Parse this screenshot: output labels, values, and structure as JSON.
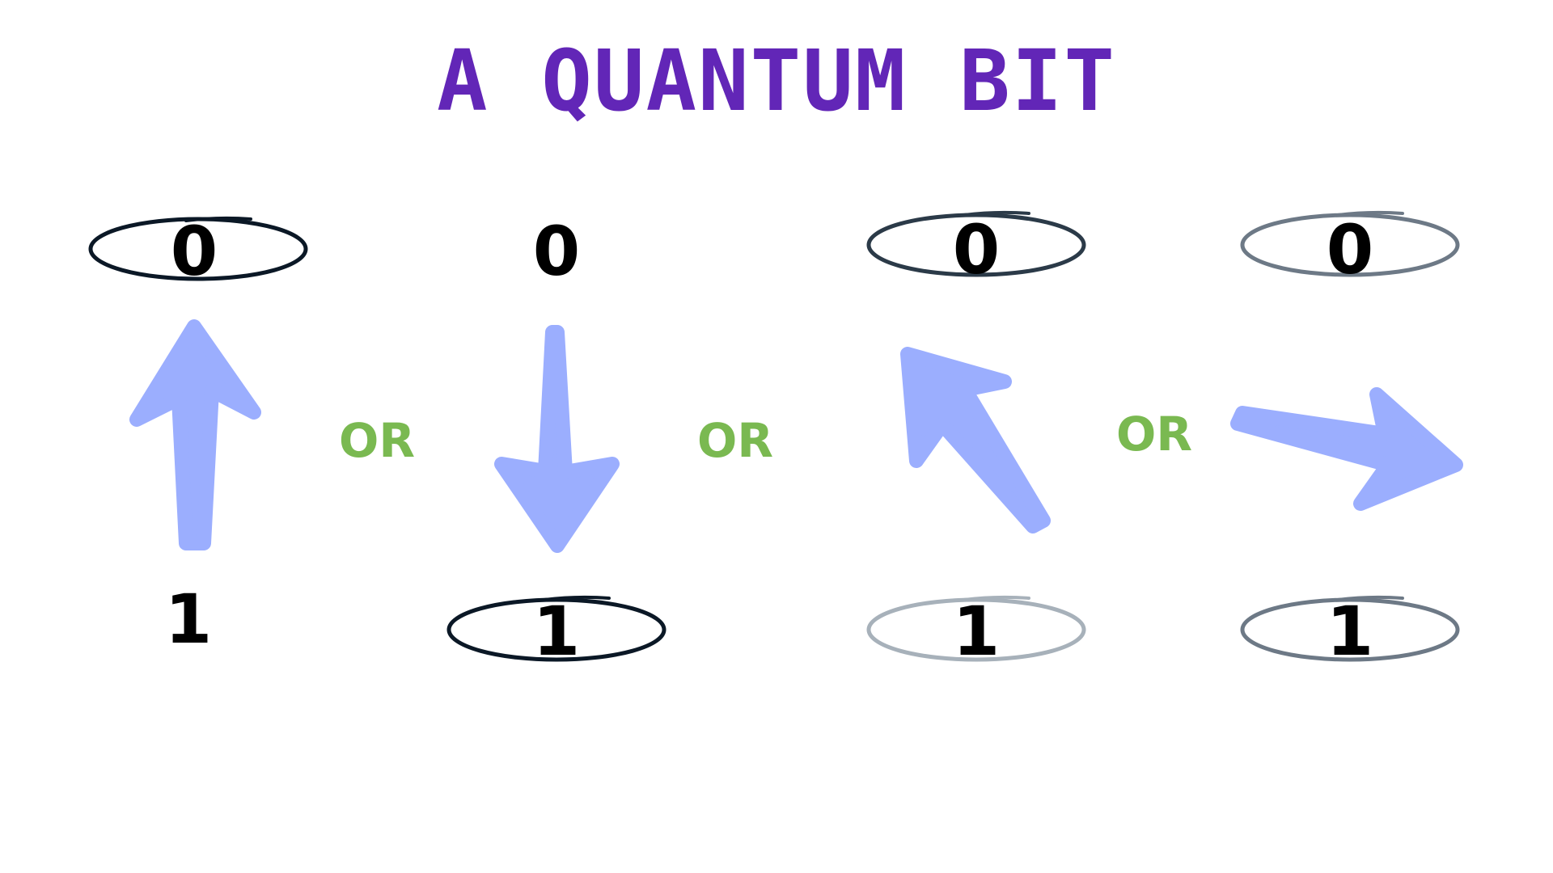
{
  "title": "A QUANTUM BIT",
  "connector_label": "OR",
  "colors": {
    "title": "#6226b7",
    "arrow": "#9baefe",
    "connector": "#7ab951",
    "digit": "#000000"
  },
  "states": [
    {
      "label": "up",
      "top_digit": "0",
      "bottom_digit": "1",
      "top_ellipse_stroke": "#0b1826",
      "bottom_ellipse_stroke": null
    },
    {
      "label": "down",
      "top_digit": "0",
      "bottom_digit": "1",
      "top_ellipse_stroke": null,
      "bottom_ellipse_stroke": "#0b1826"
    },
    {
      "label": "mostly-zero",
      "top_digit": "0",
      "bottom_digit": "1",
      "top_ellipse_stroke": "#2b3a48",
      "bottom_ellipse_stroke": "#a7b1ba"
    },
    {
      "label": "even",
      "top_digit": "0",
      "bottom_digit": "1",
      "top_ellipse_stroke": "#6d7986",
      "bottom_ellipse_stroke": "#6d7986"
    }
  ]
}
